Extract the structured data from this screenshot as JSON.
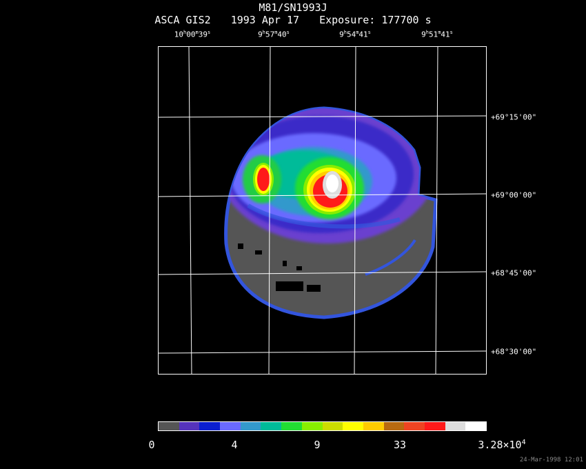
{
  "header": {
    "object": "M81/SN1993J",
    "instrument": "ASCA GIS2",
    "date": "1993 Apr 17",
    "exposure": "Exposure: 177700 s"
  },
  "ra_labels": [
    {
      "h": "10",
      "m": "00",
      "s": "39"
    },
    {
      "h": "9",
      "m": "57",
      "s": "40"
    },
    {
      "h": "9",
      "m": "54",
      "s": "41"
    },
    {
      "h": "9",
      "m": "51",
      "s": "41"
    }
  ],
  "dec_labels": [
    {
      "d": "+69",
      "m": "15",
      "s": "00"
    },
    {
      "d": "+69",
      "m": "00",
      "s": "00"
    },
    {
      "d": "+68",
      "m": "45",
      "s": "00"
    },
    {
      "d": "+68",
      "m": "30",
      "s": "00"
    }
  ],
  "colorbar": {
    "colors": [
      "#555555",
      "#5533bb",
      "#0a1fd0",
      "#6a6aff",
      "#3399cc",
      "#00bb99",
      "#22dd33",
      "#88ee00",
      "#ccdd00",
      "#ffff00",
      "#ffcc00",
      "#b86a10",
      "#ee4422",
      "#ff1a1a",
      "#dddddd",
      "#ffffff"
    ],
    "labels": [
      "0",
      "4",
      "9",
      "33"
    ],
    "max_mantissa": "3.28×10",
    "max_exponent": "4"
  },
  "timestamp": "24-Mar-1998 12:01"
}
